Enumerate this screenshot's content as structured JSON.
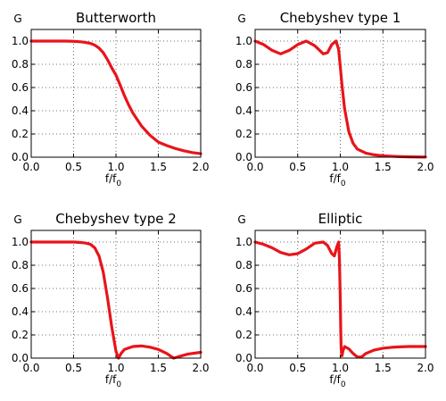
{
  "chart_data": [
    {
      "type": "line",
      "title": "Butterworth",
      "ylabel": "G",
      "xlabel": "f/f",
      "xlabel_subscript": "0",
      "xlim": [
        0.0,
        2.0
      ],
      "ylim": [
        0.0,
        1.1
      ],
      "xticks": [
        "0.0",
        "0.5",
        "1.0",
        "1.5",
        "2.0"
      ],
      "yticks": [
        "0.0",
        "0.2",
        "0.4",
        "0.6",
        "0.8",
        "1.0"
      ],
      "grid": true,
      "line_color": "#e8141a",
      "x": [
        0.0,
        0.2,
        0.4,
        0.5,
        0.6,
        0.7,
        0.75,
        0.8,
        0.85,
        0.9,
        0.95,
        1.0,
        1.05,
        1.1,
        1.15,
        1.2,
        1.3,
        1.4,
        1.5,
        1.6,
        1.7,
        1.8,
        1.9,
        2.0
      ],
      "y": [
        1.0,
        1.0,
        1.0,
        0.998,
        0.993,
        0.98,
        0.965,
        0.94,
        0.9,
        0.84,
        0.77,
        0.707,
        0.62,
        0.53,
        0.45,
        0.38,
        0.27,
        0.19,
        0.13,
        0.1,
        0.075,
        0.055,
        0.04,
        0.03
      ]
    },
    {
      "type": "line",
      "title": "Chebyshev type 1",
      "ylabel": "G",
      "xlabel": "f/f",
      "xlabel_subscript": "0",
      "xlim": [
        0.0,
        2.0
      ],
      "ylim": [
        0.0,
        1.1
      ],
      "xticks": [
        "0.0",
        "0.5",
        "1.0",
        "1.5",
        "2.0"
      ],
      "yticks": [
        "0.0",
        "0.2",
        "0.4",
        "0.6",
        "0.8",
        "1.0"
      ],
      "grid": true,
      "line_color": "#e8141a",
      "x": [
        0.0,
        0.1,
        0.2,
        0.3,
        0.4,
        0.5,
        0.6,
        0.7,
        0.8,
        0.85,
        0.9,
        0.95,
        0.98,
        1.0,
        1.02,
        1.05,
        1.1,
        1.15,
        1.2,
        1.3,
        1.4,
        1.5,
        1.6,
        1.7,
        1.8,
        1.9,
        2.0
      ],
      "y": [
        1.0,
        0.97,
        0.92,
        0.89,
        0.92,
        0.97,
        1.0,
        0.96,
        0.89,
        0.9,
        0.97,
        1.0,
        0.93,
        0.78,
        0.62,
        0.42,
        0.22,
        0.12,
        0.07,
        0.035,
        0.02,
        0.012,
        0.008,
        0.005,
        0.003,
        0.002,
        0.001
      ]
    },
    {
      "type": "line",
      "title": "Chebyshev type 2",
      "ylabel": "G",
      "xlabel": "f/f",
      "xlabel_subscript": "0",
      "xlim": [
        0.0,
        2.0
      ],
      "ylim": [
        0.0,
        1.1
      ],
      "xticks": [
        "0.0",
        "0.5",
        "1.0",
        "1.5",
        "2.0"
      ],
      "yticks": [
        "0.0",
        "0.2",
        "0.4",
        "0.6",
        "0.8",
        "1.0"
      ],
      "grid": true,
      "line_color": "#e8141a",
      "x": [
        0.0,
        0.3,
        0.5,
        0.6,
        0.65,
        0.7,
        0.75,
        0.8,
        0.85,
        0.9,
        0.95,
        1.0,
        1.03,
        1.06,
        1.1,
        1.2,
        1.3,
        1.4,
        1.5,
        1.6,
        1.68,
        1.75,
        1.85,
        2.0
      ],
      "y": [
        1.0,
        1.0,
        1.0,
        0.995,
        0.99,
        0.98,
        0.95,
        0.88,
        0.74,
        0.52,
        0.27,
        0.06,
        0.0,
        0.04,
        0.075,
        0.1,
        0.105,
        0.095,
        0.075,
        0.04,
        0.0,
        0.015,
        0.035,
        0.05
      ]
    },
    {
      "type": "line",
      "title": "Elliptic",
      "ylabel": "G",
      "xlabel": "f/f",
      "xlabel_subscript": "0",
      "xlim": [
        0.0,
        2.0
      ],
      "ylim": [
        0.0,
        1.1
      ],
      "xticks": [
        "0.0",
        "0.5",
        "1.0",
        "1.5",
        "2.0"
      ],
      "yticks": [
        "0.0",
        "0.2",
        "0.4",
        "0.6",
        "0.8",
        "1.0"
      ],
      "grid": true,
      "line_color": "#e8141a",
      "x": [
        0.0,
        0.1,
        0.2,
        0.3,
        0.4,
        0.5,
        0.6,
        0.7,
        0.8,
        0.85,
        0.9,
        0.93,
        0.96,
        0.98,
        0.99,
        1.0,
        1.005,
        1.01,
        1.02,
        1.03,
        1.05,
        1.1,
        1.15,
        1.2,
        1.25,
        1.3,
        1.4,
        1.5,
        1.6,
        1.7,
        1.8,
        1.9,
        2.0
      ],
      "y": [
        1.0,
        0.98,
        0.95,
        0.91,
        0.89,
        0.9,
        0.94,
        0.99,
        1.0,
        0.97,
        0.9,
        0.88,
        0.96,
        1.0,
        0.85,
        0.5,
        0.25,
        0.08,
        0.02,
        0.06,
        0.1,
        0.08,
        0.04,
        0.01,
        0.01,
        0.04,
        0.07,
        0.085,
        0.093,
        0.097,
        0.1,
        0.1,
        0.1
      ]
    }
  ]
}
